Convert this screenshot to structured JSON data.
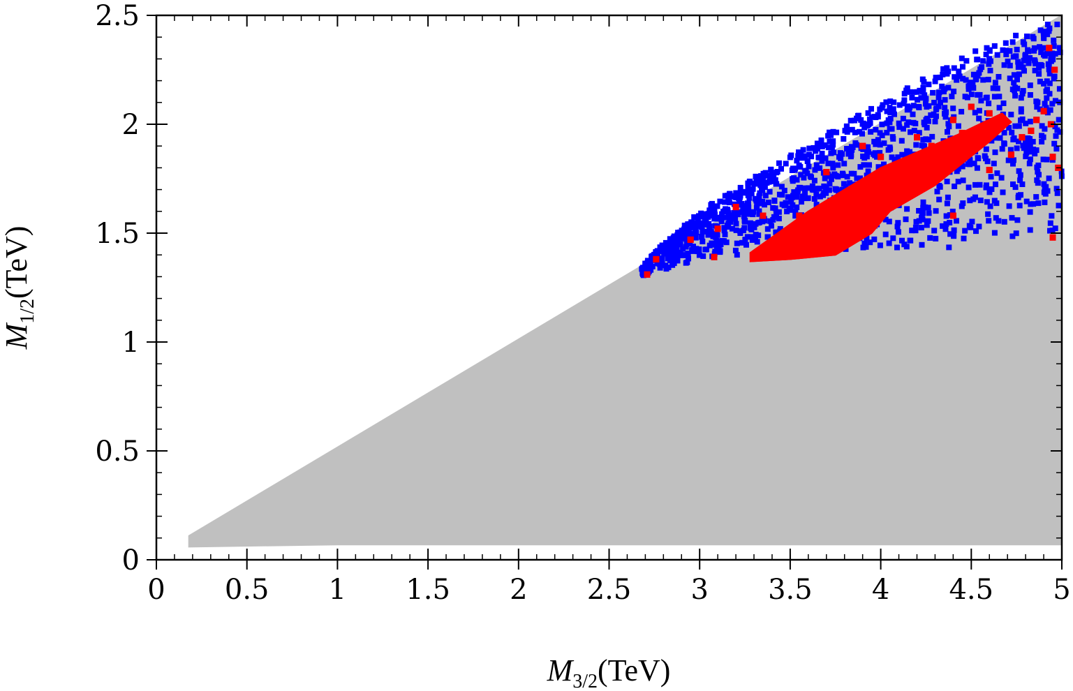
{
  "chart_data": {
    "type": "scatter",
    "title": "",
    "xlabel": {
      "symbol": "M",
      "subscript": "3/2",
      "unit": "(TeV)"
    },
    "ylabel": {
      "symbol": "M",
      "subscript": "1/2",
      "unit": "(TeV)"
    },
    "xlim": [
      0,
      5
    ],
    "ylim": [
      0,
      2.5
    ],
    "xticks": [
      "0",
      "0.5",
      "1",
      "1.5",
      "2",
      "2.5",
      "3",
      "3.5",
      "4",
      "4.5",
      "5"
    ],
    "yticks": [
      "0",
      "0.5",
      "1",
      "1.5",
      "2",
      "2.5"
    ],
    "grid": false,
    "legend": "none",
    "colors": {
      "gray": "#c0c0c0",
      "blue": "#0000ff",
      "red": "#ff0000"
    },
    "series": [
      {
        "name": "gray-region",
        "color": "#c0c0c0",
        "kind": "region",
        "outline": [
          [
            0.18,
            0.06
          ],
          [
            0.18,
            0.11
          ],
          [
            5.0,
            2.5
          ],
          [
            5.0,
            0.07
          ],
          [
            3.0,
            0.07
          ],
          [
            1.0,
            0.07
          ]
        ]
      },
      {
        "name": "blue-points",
        "color": "#0000ff",
        "kind": "band",
        "lower": [
          [
            2.68,
            1.3
          ],
          [
            3.0,
            1.38
          ],
          [
            3.5,
            1.42
          ],
          [
            4.0,
            1.42
          ],
          [
            4.4,
            1.43
          ],
          [
            4.7,
            1.45
          ],
          [
            5.0,
            1.5
          ]
        ],
        "upper": [
          [
            2.68,
            1.36
          ],
          [
            3.0,
            1.6
          ],
          [
            3.5,
            1.86
          ],
          [
            4.0,
            2.1
          ],
          [
            4.5,
            2.33
          ],
          [
            5.0,
            2.49
          ]
        ],
        "count": 1400
      },
      {
        "name": "red-region",
        "color": "#ff0000",
        "kind": "region",
        "outline": [
          [
            3.28,
            1.37
          ],
          [
            3.28,
            1.41
          ],
          [
            3.6,
            1.6
          ],
          [
            4.0,
            1.8
          ],
          [
            4.42,
            1.95
          ],
          [
            4.67,
            2.05
          ],
          [
            4.72,
            2.01
          ],
          [
            4.6,
            1.92
          ],
          [
            4.3,
            1.72
          ],
          [
            4.05,
            1.6
          ],
          [
            3.95,
            1.5
          ],
          [
            3.75,
            1.4
          ],
          [
            3.5,
            1.38
          ]
        ]
      },
      {
        "name": "red-extra",
        "color": "#ff0000",
        "kind": "points",
        "points": [
          [
            2.71,
            1.31
          ],
          [
            2.76,
            1.38
          ],
          [
            2.95,
            1.47
          ],
          [
            3.08,
            1.39
          ],
          [
            3.1,
            1.52
          ],
          [
            3.2,
            1.62
          ],
          [
            3.35,
            1.58
          ],
          [
            3.4,
            1.44
          ],
          [
            3.55,
            1.58
          ],
          [
            3.7,
            1.78
          ],
          [
            3.9,
            1.9
          ],
          [
            4.0,
            1.85
          ],
          [
            4.1,
            1.79
          ],
          [
            4.2,
            1.94
          ],
          [
            4.28,
            1.9
          ],
          [
            4.4,
            2.02
          ],
          [
            4.45,
            1.96
          ],
          [
            4.5,
            2.08
          ],
          [
            4.6,
            2.05
          ],
          [
            4.72,
            1.86
          ],
          [
            4.78,
            1.94
          ],
          [
            4.83,
            1.97
          ],
          [
            4.86,
            2.02
          ],
          [
            4.9,
            2.06
          ],
          [
            4.93,
            2.35
          ],
          [
            4.94,
            2.0
          ],
          [
            4.96,
            2.25
          ],
          [
            4.95,
            1.85
          ],
          [
            4.98,
            1.8
          ],
          [
            4.4,
            1.58
          ],
          [
            4.6,
            1.79
          ],
          [
            4.95,
            1.48
          ]
        ]
      }
    ]
  }
}
